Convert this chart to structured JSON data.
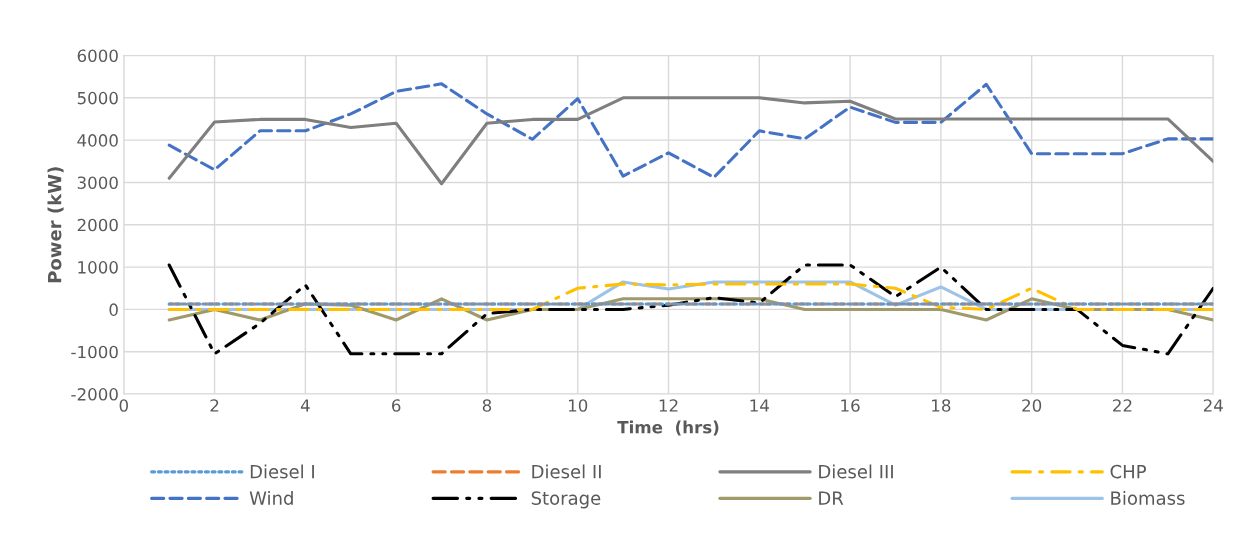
{
  "chart_data": {
    "type": "line",
    "xlabel": "Time  (hrs)",
    "ylabel": "Power (kW)",
    "x": [
      1,
      2,
      3,
      4,
      5,
      6,
      7,
      8,
      9,
      10,
      11,
      12,
      13,
      14,
      15,
      16,
      17,
      18,
      19,
      20,
      21,
      22,
      23,
      24
    ],
    "xlim": [
      0,
      24
    ],
    "xticks": [
      0,
      2,
      4,
      6,
      8,
      10,
      12,
      14,
      16,
      18,
      20,
      22,
      24
    ],
    "ylim": [
      -2000,
      6000
    ],
    "yticks": [
      -2000,
      -1000,
      0,
      1000,
      2000,
      3000,
      4000,
      5000,
      6000
    ],
    "grid": true,
    "legend": "bottom",
    "marker": "none",
    "series": [
      {
        "name": "Diesel I",
        "color": "#5b9bd5",
        "line_style": "dotted",
        "values": [
          130,
          130,
          130,
          130,
          130,
          130,
          130,
          130,
          130,
          130,
          130,
          130,
          130,
          130,
          130,
          130,
          130,
          130,
          130,
          130,
          130,
          130,
          130,
          130
        ]
      },
      {
        "name": "Diesel II",
        "color": "#ed7d31",
        "line_style": "dashed",
        "values": [
          130,
          130,
          130,
          130,
          130,
          130,
          130,
          130,
          130,
          130,
          130,
          130,
          130,
          130,
          130,
          130,
          130,
          130,
          130,
          130,
          130,
          130,
          130,
          130
        ]
      },
      {
        "name": "Diesel III",
        "color": "#7f7f7f",
        "line_style": "solid",
        "values": [
          3100,
          4430,
          4490,
          4490,
          4300,
          4400,
          2970,
          4400,
          4490,
          4490,
          5000,
          5000,
          5000,
          5000,
          4880,
          4920,
          4500,
          4500,
          4500,
          4500,
          4500,
          4500,
          4500,
          3500
        ]
      },
      {
        "name": "CHP",
        "color": "#ffc000",
        "line_style": "dashdot",
        "values": [
          0,
          0,
          0,
          0,
          0,
          0,
          0,
          0,
          0,
          500,
          600,
          580,
          600,
          600,
          600,
          600,
          500,
          50,
          0,
          500,
          0,
          0,
          0,
          0
        ]
      },
      {
        "name": "Wind",
        "color": "#4472c4",
        "line_style": "dashed",
        "values": [
          3880,
          3300,
          4220,
          4220,
          4620,
          5150,
          5330,
          4620,
          4020,
          4980,
          3150,
          3700,
          3120,
          4220,
          4030,
          4780,
          4420,
          4420,
          5320,
          3680,
          3680,
          3680,
          4030,
          4030
        ]
      },
      {
        "name": "Storage",
        "color": "#000000",
        "line_style": "dashdotdot",
        "values": [
          1050,
          -1050,
          -330,
          580,
          -1050,
          -1050,
          -1050,
          -100,
          0,
          0,
          0,
          100,
          280,
          150,
          1050,
          1050,
          300,
          1000,
          0,
          0,
          0,
          -850,
          -1050,
          500
        ]
      },
      {
        "name": "DR",
        "color": "#a09a6a",
        "line_style": "solid",
        "values": [
          -250,
          0,
          -250,
          130,
          100,
          -250,
          250,
          -250,
          0,
          0,
          250,
          250,
          250,
          250,
          0,
          0,
          0,
          0,
          -250,
          250,
          0,
          0,
          0,
          -250
        ]
      },
      {
        "name": "Biomass",
        "color": "#9dc3e6",
        "line_style": "solid",
        "values": [
          0,
          0,
          0,
          0,
          0,
          0,
          0,
          0,
          0,
          0,
          650,
          480,
          650,
          650,
          650,
          650,
          100,
          530,
          0,
          0,
          0,
          0,
          0,
          0
        ]
      }
    ]
  }
}
